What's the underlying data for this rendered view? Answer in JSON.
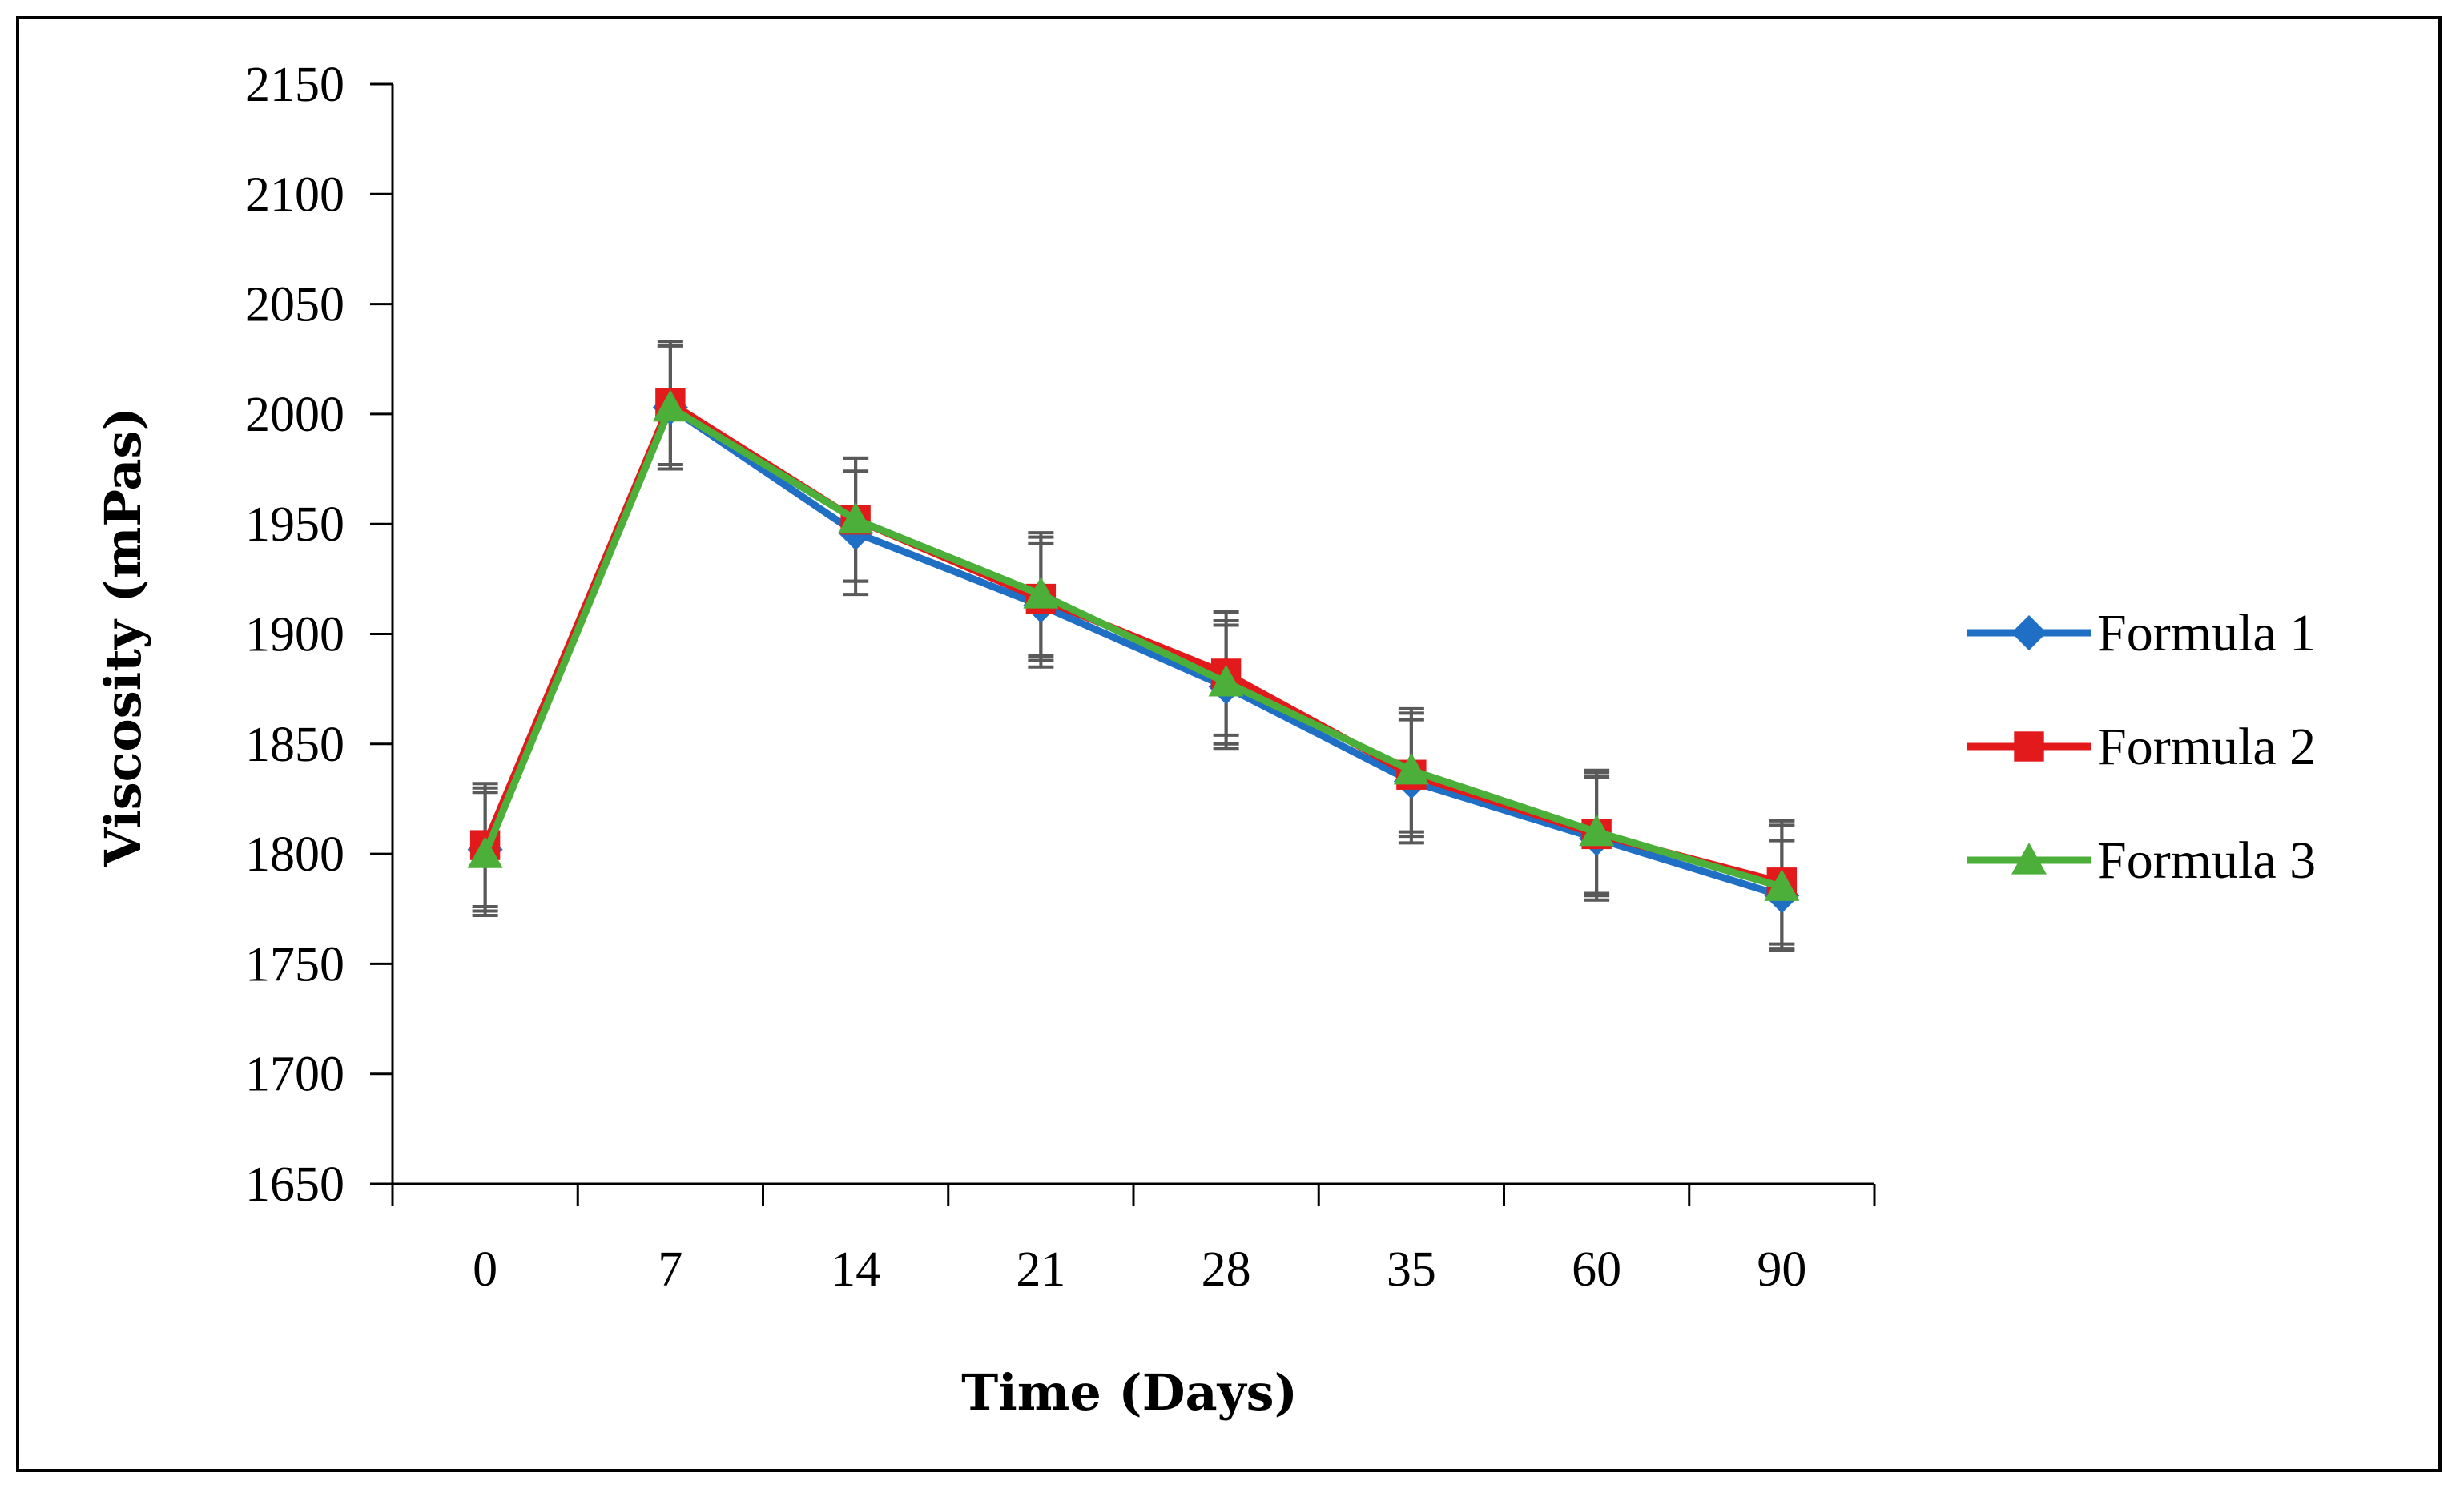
{
  "chart_data": {
    "type": "line",
    "title": "",
    "xlabel": "Time (Days)",
    "ylabel": "Viscosity (mPas)",
    "categories": [
      "0",
      "7",
      "14",
      "21",
      "28",
      "35",
      "60",
      "90"
    ],
    "ylim": [
      1650,
      2150
    ],
    "yticks": [
      1650,
      1700,
      1750,
      1800,
      1850,
      1900,
      1950,
      2000,
      2050,
      2100,
      2150
    ],
    "grid": false,
    "legend_position": "right",
    "series": [
      {
        "name": "Formula 1",
        "color": "#1f6fc5",
        "marker": "diamond",
        "values": [
          1802,
          2003,
          1946,
          1913,
          1876,
          1833,
          1807,
          1781
        ],
        "errors": [
          28,
          28,
          28,
          28,
          28,
          28,
          28,
          25
        ]
      },
      {
        "name": "Formula 2",
        "color": "#e31a1c",
        "marker": "square",
        "values": [
          1804,
          2005,
          1952,
          1916,
          1882,
          1836,
          1809,
          1787
        ],
        "errors": [
          28,
          28,
          28,
          28,
          28,
          28,
          28,
          28
        ]
      },
      {
        "name": "Formula 3",
        "color": "#4caf3a",
        "marker": "triangle",
        "values": [
          1800,
          2003,
          1952,
          1918,
          1878,
          1838,
          1810,
          1785
        ],
        "errors": [
          28,
          28,
          28,
          28,
          28,
          28,
          28,
          28
        ]
      }
    ],
    "error_bar_color": "#595959"
  }
}
